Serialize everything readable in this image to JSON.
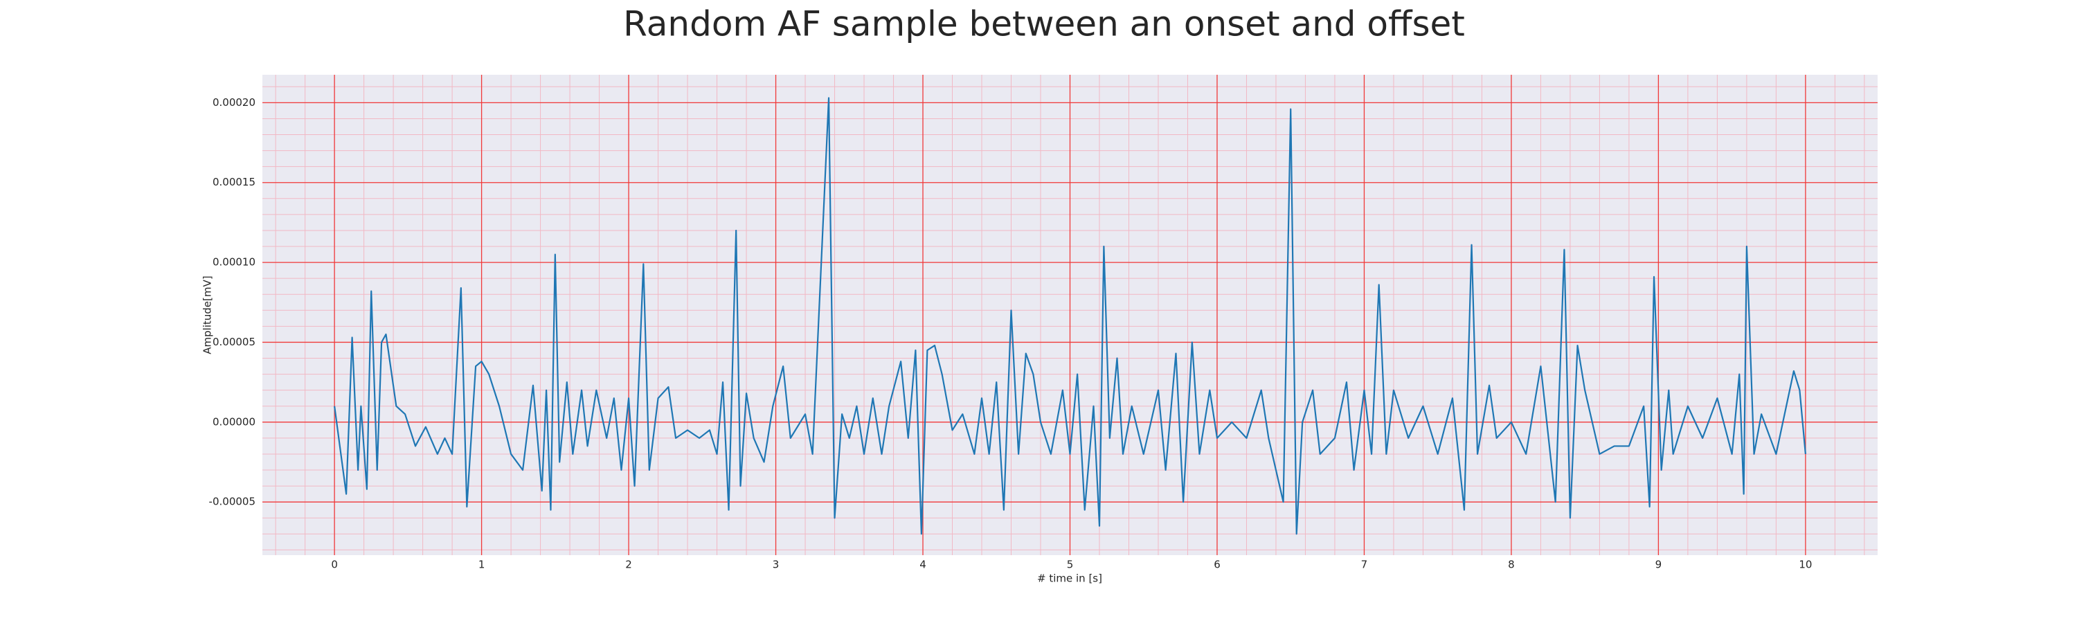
{
  "chart_data": {
    "type": "line",
    "title": "Random AF sample between an onset and offset",
    "xlabel": "# time in [s]",
    "ylabel": "Amplitude[mV]",
    "xlim": [
      -0.49,
      10.49
    ],
    "ylim": [
      -8.33e-05,
      0.0002175
    ],
    "xticks": [
      0,
      1,
      2,
      3,
      4,
      5,
      6,
      7,
      8,
      9,
      10
    ],
    "yticks": [
      {
        "value": -5e-05,
        "label": "-0.00005"
      },
      {
        "value": 0,
        "label": "0.00000"
      },
      {
        "value": 5e-05,
        "label": "0.00005"
      },
      {
        "value": 0.0001,
        "label": "0.00010"
      },
      {
        "value": 0.00015,
        "label": "0.00015"
      },
      {
        "value": 0.0002,
        "label": "0.00020"
      }
    ],
    "grid": true,
    "minor_grid": true,
    "grid_color": "#f03a3a",
    "minor_grid_color": "#f2b8c4",
    "background": "#eaeaf2",
    "series": [
      {
        "color": "#1f77b4",
        "x": [
          0,
          0.08,
          0.12,
          0.16,
          0.18,
          0.22,
          0.25,
          0.29,
          0.32,
          0.35,
          0.42,
          0.48,
          0.55,
          0.62,
          0.7,
          0.75,
          0.8,
          0.86,
          0.9,
          0.96,
          1.0,
          1.05,
          1.12,
          1.2,
          1.28,
          1.35,
          1.41,
          1.44,
          1.47,
          1.5,
          1.53,
          1.58,
          1.62,
          1.68,
          1.72,
          1.78,
          1.85,
          1.9,
          1.95,
          2.0,
          2.04,
          2.1,
          2.14,
          2.2,
          2.27,
          2.32,
          2.4,
          2.48,
          2.55,
          2.6,
          2.64,
          2.68,
          2.73,
          2.76,
          2.8,
          2.85,
          2.92,
          2.98,
          3.05,
          3.1,
          3.2,
          3.25,
          3.36,
          3.4,
          3.45,
          3.5,
          3.55,
          3.6,
          3.66,
          3.72,
          3.77,
          3.85,
          3.9,
          3.95,
          3.99,
          4.03,
          4.08,
          4.13,
          4.2,
          4.27,
          4.35,
          4.4,
          4.45,
          4.5,
          4.55,
          4.6,
          4.65,
          4.7,
          4.75,
          4.8,
          4.87,
          4.95,
          5.0,
          5.05,
          5.1,
          5.16,
          5.2,
          5.23,
          5.27,
          5.32,
          5.36,
          5.42,
          5.5,
          5.6,
          5.65,
          5.72,
          5.77,
          5.83,
          5.88,
          5.95,
          6.0,
          6.1,
          6.2,
          6.3,
          6.35,
          6.45,
          6.5,
          6.54,
          6.58,
          6.65,
          6.7,
          6.8,
          6.88,
          6.93,
          7.0,
          7.05,
          7.1,
          7.15,
          7.2,
          7.3,
          7.4,
          7.5,
          7.6,
          7.68,
          7.73,
          7.77,
          7.85,
          7.9,
          8.0,
          8.1,
          8.2,
          8.3,
          8.36,
          8.4,
          8.45,
          8.5,
          8.6,
          8.7,
          8.8,
          8.9,
          8.94,
          8.97,
          9.02,
          9.07,
          9.1,
          9.2,
          9.3,
          9.4,
          9.5,
          9.55,
          9.58,
          9.6,
          9.65,
          9.7,
          9.8,
          9.92,
          9.96,
          10.0
        ],
        "values": [
          1e-05,
          -4.5e-05,
          5.3e-05,
          -3e-05,
          1e-05,
          -4.2e-05,
          8.2e-05,
          -3e-05,
          5e-05,
          5.5e-05,
          1e-05,
          5e-06,
          -1.5e-05,
          -3e-06,
          -2e-05,
          -1e-05,
          -2e-05,
          8.4e-05,
          -5.3e-05,
          3.5e-05,
          3.8e-05,
          3e-05,
          1e-05,
          -2e-05,
          -3e-05,
          2.3e-05,
          -4.3e-05,
          2e-05,
          -5.5e-05,
          0.000105,
          -2.5e-05,
          2.5e-05,
          -2e-05,
          2e-05,
          -1.5e-05,
          2e-05,
          -1e-05,
          1.5e-05,
          -3e-05,
          1.5e-05,
          -4e-05,
          9.9e-05,
          -3e-05,
          1.5e-05,
          2.2e-05,
          -1e-05,
          -5e-06,
          -1e-05,
          -5e-06,
          -2e-05,
          2.5e-05,
          -5.5e-05,
          0.00012,
          -4e-05,
          1.8e-05,
          -1e-05,
          -2.5e-05,
          1e-05,
          3.5e-05,
          -1e-05,
          5e-06,
          -2e-05,
          0.000203,
          -6e-05,
          5e-06,
          -1e-05,
          1e-05,
          -2e-05,
          1.5e-05,
          -2e-05,
          1e-05,
          3.8e-05,
          -1e-05,
          4.5e-05,
          -7e-05,
          4.5e-05,
          4.8e-05,
          3e-05,
          -5e-06,
          5e-06,
          -2e-05,
          1.5e-05,
          -2e-05,
          2.5e-05,
          -5.5e-05,
          7e-05,
          -2e-05,
          4.3e-05,
          3e-05,
          0,
          -2e-05,
          2e-05,
          -2e-05,
          3e-05,
          -5.5e-05,
          1e-05,
          -6.5e-05,
          0.00011,
          -1e-05,
          4e-05,
          -2e-05,
          1e-05,
          -2e-05,
          2e-05,
          -3e-05,
          4.3e-05,
          -5e-05,
          5e-05,
          -2e-05,
          2e-05,
          -1e-05,
          0,
          -1e-05,
          2e-05,
          -1e-05,
          -5e-05,
          0.000196,
          -7e-05,
          0,
          2e-05,
          -2e-05,
          -1e-05,
          2.5e-05,
          -3e-05,
          2e-05,
          -2e-05,
          8.6e-05,
          -2e-05,
          2e-05,
          -1e-05,
          1e-05,
          -2e-05,
          1.5e-05,
          -5.5e-05,
          0.000111,
          -2e-05,
          2.3e-05,
          -1e-05,
          0,
          -2e-05,
          3.5e-05,
          -5e-05,
          0.000108,
          -6e-05,
          4.8e-05,
          2e-05,
          -2e-05,
          -1.5e-05,
          -1.5e-05,
          1e-05,
          -5.3e-05,
          9.1e-05,
          -3e-05,
          2e-05,
          -2e-05,
          1e-05,
          -1e-05,
          1.5e-05,
          -2e-05,
          3e-05,
          -4.5e-05,
          0.00011,
          -2e-05,
          5e-06,
          -2e-05,
          3.2e-05,
          2e-05,
          -2e-05
        ]
      }
    ]
  }
}
